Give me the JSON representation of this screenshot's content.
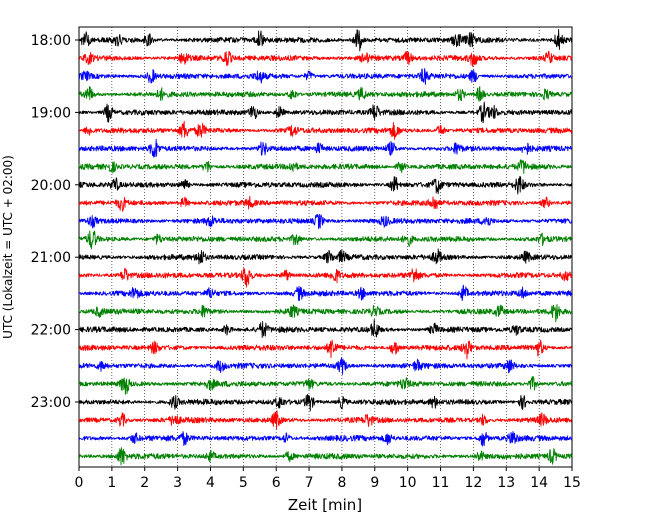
{
  "chart_data": {
    "type": "line",
    "title": "",
    "xlabel": "Zeit  [min]",
    "ylabel": "UTC (Lokalzeit = UTC + 02:00)",
    "xlim": [
      0,
      15
    ],
    "x_ticks": [
      "0",
      "1",
      "2",
      "3",
      "4",
      "5",
      "6",
      "7",
      "8",
      "9",
      "10",
      "11",
      "12",
      "13",
      "14",
      "15"
    ],
    "y_ticks": [
      "18:00",
      "19:00",
      "20:00",
      "21:00",
      "22:00",
      "23:00"
    ],
    "grid": "vertical-dotted",
    "trace_colors": [
      "#000000",
      "#ff0000",
      "#0000ff",
      "#008000"
    ],
    "series": [
      {
        "start": "18:00",
        "color": "#000000",
        "events": [
          [
            0.2,
            1.0
          ],
          [
            1.2,
            0.7
          ],
          [
            2.1,
            0.8
          ],
          [
            5.5,
            1.1
          ],
          [
            8.5,
            1.6
          ],
          [
            11.5,
            0.9
          ],
          [
            11.9,
            1.1
          ],
          [
            14.6,
            1.3
          ]
        ]
      },
      {
        "start": "18:15",
        "color": "#ff0000",
        "events": [
          [
            0.3,
            0.6
          ],
          [
            3.2,
            0.9
          ],
          [
            4.5,
            1.0
          ],
          [
            8.7,
            0.7
          ],
          [
            10.0,
            0.8
          ],
          [
            12.0,
            1.0
          ],
          [
            14.3,
            0.7
          ]
        ]
      },
      {
        "start": "18:30",
        "color": "#0000ff",
        "events": [
          [
            0.2,
            0.5
          ],
          [
            2.2,
            0.9
          ],
          [
            5.5,
            0.7
          ],
          [
            7.0,
            0.6
          ],
          [
            10.5,
            0.9
          ],
          [
            12.0,
            0.8
          ]
        ]
      },
      {
        "start": "18:45",
        "color": "#008000",
        "events": [
          [
            0.3,
            1.0
          ],
          [
            2.5,
            0.6
          ],
          [
            6.5,
            0.7
          ],
          [
            8.6,
            0.7
          ],
          [
            11.6,
            0.8
          ],
          [
            12.2,
            1.0
          ],
          [
            14.2,
            0.6
          ]
        ]
      },
      {
        "start": "19:00",
        "color": "#000000",
        "events": [
          [
            0.9,
            1.2
          ],
          [
            5.3,
            1.0
          ],
          [
            6.1,
            0.8
          ],
          [
            9.0,
            1.1
          ],
          [
            12.3,
            1.3
          ],
          [
            12.6,
            0.8
          ]
        ]
      },
      {
        "start": "19:15",
        "color": "#ff0000",
        "events": [
          [
            0.3,
            0.6
          ],
          [
            3.2,
            1.1
          ],
          [
            3.7,
            0.9
          ],
          [
            6.5,
            0.7
          ],
          [
            9.6,
            0.9
          ],
          [
            11.0,
            0.7
          ]
        ]
      },
      {
        "start": "19:30",
        "color": "#0000ff",
        "events": [
          [
            2.3,
            1.4
          ],
          [
            5.6,
            0.9
          ],
          [
            7.3,
            0.6
          ],
          [
            9.5,
            0.8
          ],
          [
            11.5,
            0.7
          ],
          [
            13.6,
            0.7
          ]
        ]
      },
      {
        "start": "19:45",
        "color": "#008000",
        "events": [
          [
            1.0,
            0.6
          ],
          [
            3.9,
            0.8
          ],
          [
            6.5,
            0.6
          ],
          [
            9.8,
            0.7
          ],
          [
            13.5,
            0.8
          ]
        ]
      },
      {
        "start": "20:00",
        "color": "#000000",
        "events": [
          [
            1.1,
            0.8
          ],
          [
            3.2,
            0.7
          ],
          [
            9.6,
            1.1
          ],
          [
            10.9,
            1.0
          ],
          [
            13.4,
            1.2
          ]
        ]
      },
      {
        "start": "20:15",
        "color": "#ff0000",
        "events": [
          [
            1.3,
            0.9
          ],
          [
            3.2,
            0.7
          ],
          [
            5.2,
            0.6
          ],
          [
            10.8,
            1.0
          ],
          [
            14.2,
            0.7
          ]
        ]
      },
      {
        "start": "20:30",
        "color": "#0000ff",
        "events": [
          [
            0.4,
            0.7
          ],
          [
            4.0,
            0.6
          ],
          [
            7.3,
            1.0
          ],
          [
            9.3,
            0.6
          ],
          [
            12.4,
            0.7
          ]
        ]
      },
      {
        "start": "20:45",
        "color": "#008000",
        "events": [
          [
            0.4,
            1.3
          ],
          [
            2.4,
            0.6
          ],
          [
            6.6,
            0.7
          ],
          [
            10.0,
            0.8
          ],
          [
            14.1,
            0.6
          ]
        ]
      },
      {
        "start": "21:00",
        "color": "#000000",
        "events": [
          [
            3.7,
            1.0
          ],
          [
            7.6,
            0.8
          ],
          [
            8.0,
            0.7
          ],
          [
            10.9,
            0.9
          ],
          [
            13.6,
            0.6
          ]
        ]
      },
      {
        "start": "21:15",
        "color": "#ff0000",
        "events": [
          [
            1.4,
            0.9
          ],
          [
            5.1,
            1.6
          ],
          [
            6.3,
            0.7
          ],
          [
            7.8,
            0.8
          ],
          [
            10.2,
            1.0
          ],
          [
            14.8,
            0.6
          ]
        ]
      },
      {
        "start": "21:30",
        "color": "#0000ff",
        "events": [
          [
            1.7,
            0.7
          ],
          [
            4.0,
            0.6
          ],
          [
            6.7,
            0.8
          ],
          [
            8.6,
            0.7
          ],
          [
            11.7,
            1.0
          ],
          [
            13.5,
            0.6
          ]
        ]
      },
      {
        "start": "21:45",
        "color": "#008000",
        "events": [
          [
            0.6,
            0.5
          ],
          [
            3.8,
            0.7
          ],
          [
            6.5,
            0.7
          ],
          [
            9.0,
            0.6
          ],
          [
            12.8,
            0.7
          ],
          [
            14.5,
            1.2
          ]
        ]
      },
      {
        "start": "22:00",
        "color": "#000000",
        "events": [
          [
            4.5,
            0.7
          ],
          [
            5.6,
            1.0
          ],
          [
            9.0,
            1.2
          ],
          [
            10.8,
            0.7
          ],
          [
            13.3,
            0.6
          ]
        ]
      },
      {
        "start": "22:15",
        "color": "#ff0000",
        "events": [
          [
            2.3,
            0.7
          ],
          [
            7.7,
            1.3
          ],
          [
            9.6,
            1.0
          ],
          [
            11.8,
            1.3
          ],
          [
            14.0,
            1.0
          ]
        ]
      },
      {
        "start": "22:30",
        "color": "#0000ff",
        "events": [
          [
            0.7,
            0.6
          ],
          [
            4.3,
            0.7
          ],
          [
            8.0,
            1.0
          ],
          [
            10.3,
            0.6
          ],
          [
            13.1,
            0.8
          ]
        ]
      },
      {
        "start": "22:45",
        "color": "#008000",
        "events": [
          [
            1.4,
            1.4
          ],
          [
            4.0,
            0.6
          ],
          [
            7.0,
            0.6
          ],
          [
            9.9,
            0.7
          ],
          [
            13.8,
            0.9
          ]
        ]
      },
      {
        "start": "23:00",
        "color": "#000000",
        "events": [
          [
            2.9,
            0.8
          ],
          [
            6.1,
            0.7
          ],
          [
            7.0,
            1.2
          ],
          [
            8.0,
            0.8
          ],
          [
            10.8,
            0.7
          ],
          [
            13.5,
            0.9
          ]
        ]
      },
      {
        "start": "23:15",
        "color": "#ff0000",
        "events": [
          [
            1.3,
            0.9
          ],
          [
            2.9,
            0.7
          ],
          [
            6.0,
            1.1
          ],
          [
            8.8,
            0.7
          ],
          [
            12.3,
            0.7
          ],
          [
            14.1,
            0.7
          ]
        ]
      },
      {
        "start": "23:30",
        "color": "#0000ff",
        "events": [
          [
            1.7,
            0.6
          ],
          [
            3.2,
            0.7
          ],
          [
            6.3,
            0.6
          ],
          [
            9.4,
            0.7
          ],
          [
            12.3,
            1.1
          ],
          [
            13.2,
            0.9
          ]
        ]
      },
      {
        "start": "23:45",
        "color": "#008000",
        "events": [
          [
            1.3,
            1.2
          ],
          [
            4.0,
            0.6
          ],
          [
            6.4,
            0.6
          ],
          [
            12.2,
            0.6
          ],
          [
            14.4,
            1.0
          ]
        ]
      }
    ]
  }
}
